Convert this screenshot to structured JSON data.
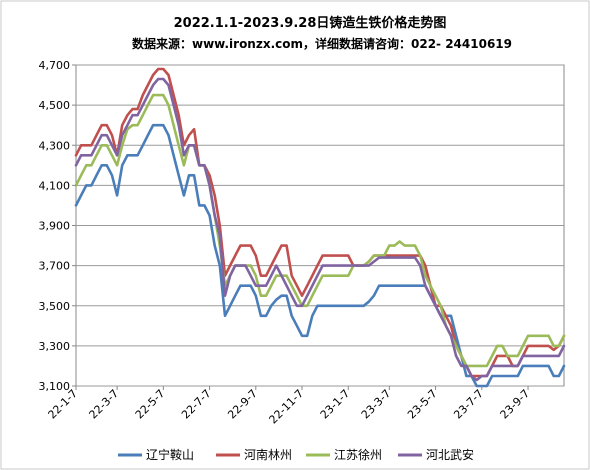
{
  "chart_data": {
    "type": "line",
    "title": "2022.1.1-2023.9.28日铸造生铁价格走势图",
    "subtitle": "数据来源：www.ironzx.com，详细数据请咨询：022- 24410619",
    "xlabel": "",
    "ylabel": "",
    "ylim": [
      3100,
      4700
    ],
    "yticks": [
      3100,
      3300,
      3500,
      3700,
      3900,
      4100,
      4300,
      4500,
      4700
    ],
    "ytick_labels": [
      "3,100",
      "3,300",
      "3,500",
      "3,700",
      "3,900",
      "4,100",
      "4,300",
      "4,500",
      "4,700"
    ],
    "x_index_range": [
      0,
      95
    ],
    "xticks": [
      {
        "label": "22-1-7",
        "i": 0
      },
      {
        "label": "22-3-7",
        "i": 8
      },
      {
        "label": "22-5-7",
        "i": 17
      },
      {
        "label": "22-7-7",
        "i": 26
      },
      {
        "label": "22-9-7",
        "i": 35
      },
      {
        "label": "22-11-7",
        "i": 44
      },
      {
        "label": "23-1-7",
        "i": 53
      },
      {
        "label": "23-3-7",
        "i": 61
      },
      {
        "label": "23-5-7",
        "i": 70
      },
      {
        "label": "23-7-7",
        "i": 79
      },
      {
        "label": "23-9-7",
        "i": 88
      }
    ],
    "grid": true,
    "legend_position": "bottom",
    "series": [
      {
        "name": "辽宁鞍山",
        "color": "#4a7eba",
        "values": [
          4000,
          4050,
          4100,
          4100,
          4150,
          4200,
          4200,
          4150,
          4050,
          4200,
          4250,
          4250,
          4250,
          4300,
          4350,
          4400,
          4400,
          4400,
          4350,
          4250,
          4150,
          4050,
          4150,
          4150,
          4000,
          4000,
          3950,
          3800,
          3700,
          3450,
          3500,
          3550,
          3600,
          3600,
          3600,
          3550,
          3450,
          3450,
          3500,
          3530,
          3550,
          3550,
          3450,
          3400,
          3350,
          3350,
          3450,
          3500,
          3500,
          3500,
          3500,
          3500,
          3500,
          3500,
          3500,
          3500,
          3500,
          3520,
          3550,
          3600,
          3600,
          3600,
          3600,
          3600,
          3600,
          3600,
          3600,
          3600,
          3600,
          3550,
          3500,
          3450,
          3450,
          3450,
          3350,
          3250,
          3150,
          3150,
          3100,
          3100,
          3100,
          3150,
          3150,
          3150,
          3150,
          3150,
          3150,
          3200,
          3200,
          3200,
          3200,
          3200,
          3200,
          3150,
          3150,
          3200
        ]
      },
      {
        "name": "河南林州",
        "color": "#c0504d",
        "values": [
          4250,
          4300,
          4300,
          4300,
          4350,
          4400,
          4400,
          4350,
          4250,
          4400,
          4450,
          4480,
          4480,
          4550,
          4600,
          4650,
          4680,
          4680,
          4650,
          4550,
          4450,
          4300,
          4350,
          4380,
          4200,
          4200,
          4150,
          4050,
          3900,
          3650,
          3700,
          3750,
          3800,
          3800,
          3800,
          3750,
          3650,
          3650,
          3700,
          3750,
          3800,
          3800,
          3650,
          3600,
          3550,
          3600,
          3650,
          3700,
          3750,
          3750,
          3750,
          3750,
          3750,
          3750,
          3700,
          3700,
          3700,
          3720,
          3750,
          3750,
          3750,
          3750,
          3750,
          3750,
          3750,
          3750,
          3750,
          3750,
          3700,
          3600,
          3500,
          3500,
          3450,
          3400,
          3300,
          3250,
          3200,
          3150,
          3150,
          3150,
          3150,
          3200,
          3250,
          3250,
          3250,
          3200,
          3200,
          3250,
          3300,
          3300,
          3300,
          3300,
          3300,
          3280,
          3300,
          3350
        ]
      },
      {
        "name": "江苏徐州",
        "color": "#9bbb59",
        "values": [
          4100,
          4150,
          4200,
          4200,
          4250,
          4300,
          4300,
          4250,
          4200,
          4300,
          4380,
          4400,
          4400,
          4450,
          4500,
          4550,
          4550,
          4550,
          4500,
          4400,
          4300,
          4200,
          4300,
          4300,
          4200,
          4200,
          4100,
          3950,
          3800,
          3600,
          3650,
          3700,
          3700,
          3700,
          3700,
          3650,
          3550,
          3550,
          3600,
          3650,
          3650,
          3650,
          3600,
          3550,
          3500,
          3500,
          3550,
          3600,
          3650,
          3650,
          3650,
          3650,
          3650,
          3650,
          3700,
          3700,
          3700,
          3720,
          3750,
          3750,
          3750,
          3800,
          3800,
          3820,
          3800,
          3800,
          3800,
          3750,
          3650,
          3600,
          3550,
          3500,
          3400,
          3350,
          3300,
          3250,
          3200,
          3200,
          3200,
          3200,
          3200,
          3250,
          3300,
          3300,
          3250,
          3250,
          3250,
          3300,
          3350,
          3350,
          3350,
          3350,
          3350,
          3300,
          3300,
          3350
        ]
      },
      {
        "name": "河北武安",
        "color": "#8064a2",
        "values": [
          4200,
          4250,
          4250,
          4250,
          4300,
          4350,
          4350,
          4300,
          4250,
          4350,
          4400,
          4450,
          4450,
          4500,
          4550,
          4600,
          4630,
          4630,
          4600,
          4500,
          4400,
          4250,
          4300,
          4300,
          4200,
          4200,
          4100,
          3950,
          3850,
          3550,
          3650,
          3700,
          3700,
          3700,
          3650,
          3600,
          3600,
          3600,
          3650,
          3700,
          3650,
          3600,
          3550,
          3500,
          3500,
          3550,
          3600,
          3650,
          3700,
          3700,
          3700,
          3700,
          3700,
          3700,
          3700,
          3700,
          3700,
          3700,
          3720,
          3740,
          3740,
          3740,
          3740,
          3740,
          3740,
          3740,
          3740,
          3700,
          3600,
          3550,
          3500,
          3450,
          3400,
          3350,
          3250,
          3200,
          3200,
          3150,
          3130,
          3150,
          3150,
          3200,
          3200,
          3200,
          3200,
          3200,
          3200,
          3250,
          3250,
          3250,
          3250,
          3250,
          3250,
          3250,
          3250,
          3300
        ]
      }
    ]
  }
}
